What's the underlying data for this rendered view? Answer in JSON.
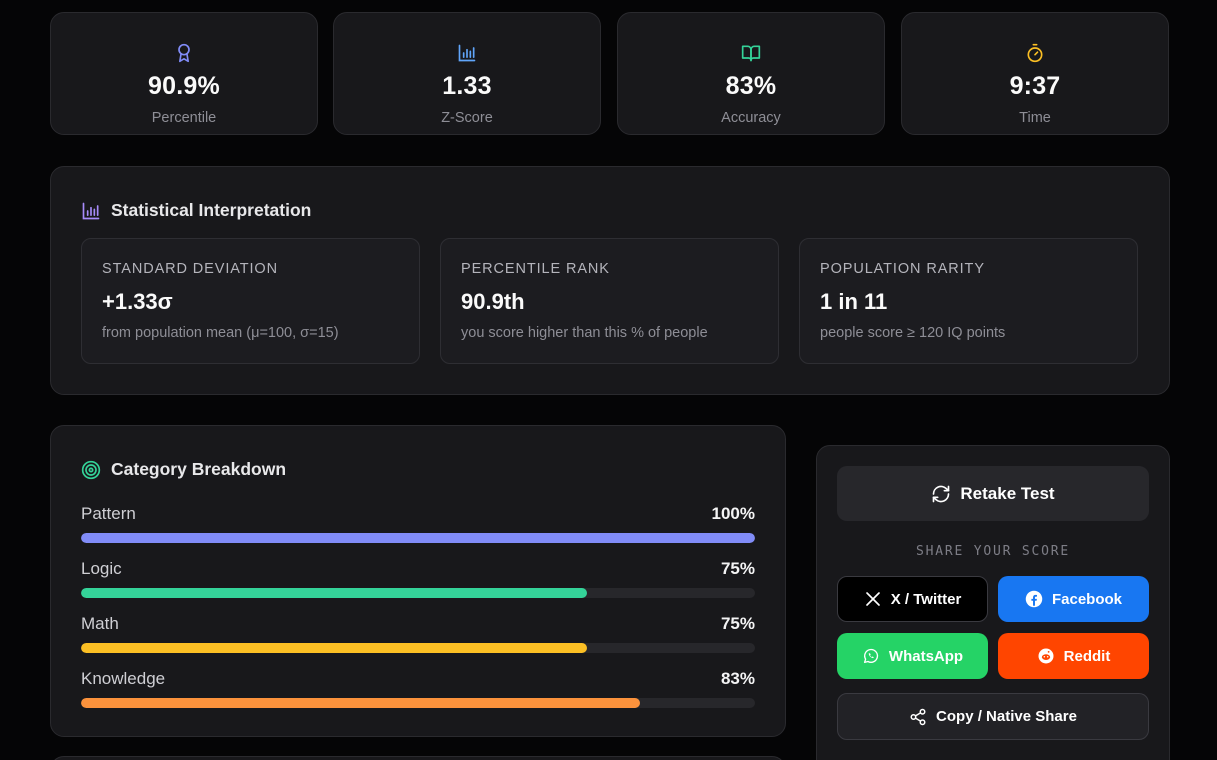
{
  "stats": [
    {
      "value": "90.9%",
      "label": "Percentile",
      "icon": "award-icon",
      "color": "#818cf8"
    },
    {
      "value": "1.33",
      "label": "Z-Score",
      "icon": "bar-chart-icon",
      "color": "#60a5fa"
    },
    {
      "value": "83%",
      "label": "Accuracy",
      "icon": "book-icon",
      "color": "#34d399"
    },
    {
      "value": "9:37",
      "label": "Time",
      "icon": "timer-icon",
      "color": "#fbbf24"
    }
  ],
  "interpretation": {
    "title": "Statistical Interpretation",
    "icon_color": "#a78bfa",
    "cards": [
      {
        "caption": "STANDARD DEVIATION",
        "value": "+1.33σ",
        "sub": "from population mean (μ=100, σ=15)"
      },
      {
        "caption": "PERCENTILE RANK",
        "value": "90.9th",
        "sub": "you score higher than this % of people"
      },
      {
        "caption": "POPULATION RARITY",
        "value": "1 in 11",
        "sub": "people score ≥ 120 IQ points"
      }
    ]
  },
  "categories": {
    "title": "Category Breakdown",
    "icon_color": "#34d399",
    "items": [
      {
        "name": "Pattern",
        "pct_label": "100%",
        "fraction": 1.0,
        "color": "#818cf8"
      },
      {
        "name": "Logic",
        "pct_label": "75%",
        "fraction": 0.75,
        "color": "#34d399"
      },
      {
        "name": "Math",
        "pct_label": "75%",
        "fraction": 0.75,
        "color": "#fbbf24"
      },
      {
        "name": "Knowledge",
        "pct_label": "83%",
        "fraction": 0.83,
        "color": "#fb923c"
      }
    ]
  },
  "share": {
    "retake_label": "Retake Test",
    "caption": "SHARE YOUR SCORE",
    "twitter_label": "X / Twitter",
    "facebook_label": "Facebook",
    "whatsapp_label": "WhatsApp",
    "reddit_label": "Reddit",
    "copy_label": "Copy / Native Share"
  }
}
